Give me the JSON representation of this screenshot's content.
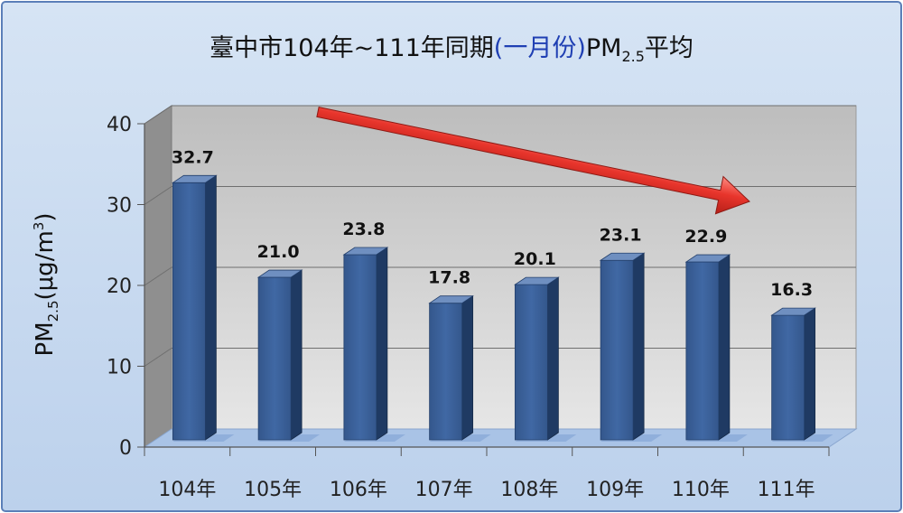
{
  "chart_data": {
    "type": "bar",
    "title": {
      "prefix": "臺中市104年~111年同期",
      "highlight": "(一月份)",
      "suffix_main": "PM",
      "suffix_sub": "2.5",
      "suffix_end": "平均"
    },
    "ylabel": {
      "main": "PM",
      "sub": "2.5",
      "unit": "(μg/m",
      "sup": "3",
      "close": ")"
    },
    "categories": [
      "104年",
      "105年",
      "106年",
      "107年",
      "108年",
      "109年",
      "110年",
      "111年"
    ],
    "values": [
      32.7,
      21.0,
      23.8,
      17.8,
      20.1,
      23.1,
      22.9,
      16.3
    ],
    "value_labels": [
      "32.7",
      "21.0",
      "23.8",
      "17.8",
      "20.1",
      "23.1",
      "22.9",
      "16.3"
    ],
    "ylim": [
      0,
      40
    ],
    "yticks": [
      "0",
      "10",
      "20",
      "30",
      "40"
    ],
    "grid": true,
    "legend": "none",
    "annotation": "downward trend arrow",
    "colors": {
      "background": "#c8d9ef",
      "border": "#5b7fb8",
      "bar_front": "#3a5f96",
      "bar_side": "#1f3a63",
      "bar_top": "#6f8fc0",
      "wall": "#d4d4d4",
      "wall_side": "#8c8c8c",
      "floor": "#a9c3e6",
      "arrow": "#e23a32",
      "title_highlight": "#1f3fb3"
    }
  }
}
